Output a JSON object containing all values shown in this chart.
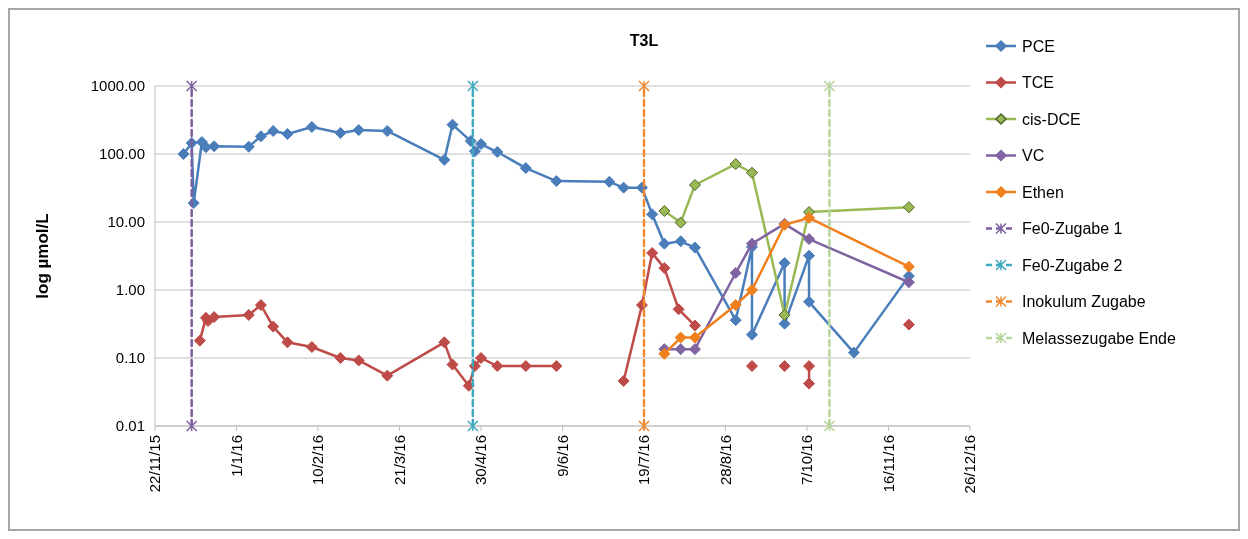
{
  "chart_data": {
    "type": "line",
    "title": "T3L",
    "ylabel": "log µmol/L",
    "log": "y",
    "grid": "y",
    "legend": "right",
    "marker": "diamond",
    "line_style": "solid",
    "xlim": [
      "2015-11-22",
      "2016-12-26"
    ],
    "xticks": [
      {
        "value": "2015-11-22",
        "label": "22/11/15"
      },
      {
        "value": "2016-01-01",
        "label": "1/1/16"
      },
      {
        "value": "2016-02-10",
        "label": "10/2/16"
      },
      {
        "value": "2016-03-21",
        "label": "21/3/16"
      },
      {
        "value": "2016-04-30",
        "label": "30/4/16"
      },
      {
        "value": "2016-06-09",
        "label": "9/6/16"
      },
      {
        "value": "2016-07-19",
        "label": "19/7/16"
      },
      {
        "value": "2016-08-28",
        "label": "28/8/16"
      },
      {
        "value": "2016-10-07",
        "label": "7/10/16"
      },
      {
        "value": "2016-11-16",
        "label": "16/11/16"
      },
      {
        "value": "2016-12-26",
        "label": "26/12/16"
      }
    ],
    "ylim": [
      0.01,
      1000
    ],
    "yticks": [
      {
        "value": 0.01,
        "label": "0.01"
      },
      {
        "value": 0.1,
        "label": "0.10"
      },
      {
        "value": 1,
        "label": "1.00"
      },
      {
        "value": 10,
        "label": "10.00"
      },
      {
        "value": 100,
        "label": "100.00"
      },
      {
        "value": 1000,
        "label": "1000.00"
      }
    ],
    "series": [
      {
        "name": "PCE",
        "color": "#4a7ebb",
        "x": [
          "2015-12-06",
          "2015-12-10",
          "2015-12-11",
          "2015-12-15",
          "2015-12-17",
          "2015-12-21",
          "2016-01-07",
          "2016-01-13",
          "2016-01-19",
          "2016-01-26",
          "2016-02-07",
          "2016-02-21",
          "2016-03-01",
          "2016-03-15",
          "2016-04-12",
          "2016-04-16",
          "2016-04-25",
          "2016-04-27",
          "2016-04-30",
          "2016-05-08",
          "2016-05-22",
          "2016-06-06",
          "2016-07-02",
          "2016-07-09",
          "2016-07-18",
          "2016-07-23",
          "2016-07-29",
          "2016-08-06",
          "2016-08-13",
          "2016-09-02",
          "2016-09-10",
          "2016-09-10",
          "2016-09-26",
          "2016-09-26",
          "2016-10-08",
          "2016-10-08",
          "2016-10-30",
          "2016-11-26"
        ],
        "values": [
          100,
          145,
          19,
          150,
          126,
          130,
          128,
          182,
          218,
          197,
          250,
          204,
          225,
          218,
          82,
          270,
          155,
          110,
          140,
          107,
          62,
          40,
          39,
          32,
          32,
          13,
          4.8,
          5.2,
          4.2,
          0.36,
          4.3,
          0.22,
          2.5,
          0.32,
          3.2,
          0.67,
          0.12,
          1.6
        ]
      },
      {
        "name": "TCE",
        "color": "#be4b48",
        "x": [
          "2015-12-14",
          "2015-12-17",
          "2015-12-18",
          "2015-12-21",
          "2016-01-07",
          "2016-01-13",
          "2016-01-19",
          "2016-01-26",
          "2016-02-07",
          "2016-02-21",
          "2016-03-01",
          "2016-03-15",
          "2016-04-12",
          "2016-04-16",
          "2016-04-24",
          "2016-04-27",
          "2016-04-30",
          "2016-05-08",
          "2016-05-22",
          "2016-06-06",
          "2016-06-19",
          "2016-07-09",
          "2016-07-18",
          "2016-07-23",
          "2016-07-29",
          "2016-08-05",
          "2016-08-13",
          "2016-08-25",
          "2016-09-10",
          "2016-09-18",
          "2016-09-26",
          "2016-10-02",
          "2016-10-08",
          "2016-10-08",
          "2016-10-20",
          "2016-11-26"
        ],
        "values": [
          0.18,
          0.39,
          0.35,
          0.4,
          0.43,
          0.6,
          0.29,
          0.17,
          0.145,
          0.1,
          0.092,
          0.055,
          0.17,
          0.08,
          0.039,
          0.076,
          0.1,
          0.076,
          0.076,
          0.076,
          null,
          0.046,
          0.6,
          3.5,
          2.1,
          0.52,
          0.3,
          null,
          0.076,
          null,
          0.076,
          null,
          0.076,
          0.042,
          null,
          0.31
        ]
      },
      {
        "name": "cis-DCE",
        "color": "#98b954",
        "x": [
          "2016-07-29",
          "2016-08-06",
          "2016-08-13",
          "2016-09-02",
          "2016-09-10",
          "2016-09-26",
          "2016-10-08",
          "2016-11-26"
        ],
        "values": [
          14.5,
          9.8,
          35,
          71,
          53,
          0.43,
          14,
          16.5
        ]
      },
      {
        "name": "VC",
        "color": "#8064a2",
        "x": [
          "2016-07-29",
          "2016-08-06",
          "2016-08-13",
          "2016-09-02",
          "2016-09-10",
          "2016-09-26",
          "2016-10-08",
          "2016-11-26"
        ],
        "values": [
          0.135,
          0.135,
          0.135,
          1.78,
          4.8,
          9.4,
          5.6,
          1.3
        ]
      },
      {
        "name": "Ethen",
        "color": "#f07f1e",
        "x": [
          "2016-07-29",
          "2016-08-06",
          "2016-08-13",
          "2016-09-02",
          "2016-09-10",
          "2016-09-26",
          "2016-10-08",
          "2016-11-26"
        ],
        "values": [
          0.115,
          0.2,
          0.2,
          0.6,
          1,
          9.1,
          11.5,
          2.2
        ]
      },
      {
        "name": "Fe0-Zugabe 1",
        "color": "#7d5fa0",
        "marker": "cross",
        "line_style": "dashed",
        "x": [
          "2015-12-10",
          "2015-12-10"
        ],
        "values": [
          0.01,
          1000
        ]
      },
      {
        "name": "Fe0-Zugabe 2",
        "color": "#3fa9c0",
        "marker": "cross",
        "line_style": "dashed",
        "x": [
          "2016-04-26",
          "2016-04-26"
        ],
        "values": [
          0.01,
          1000
        ]
      },
      {
        "name": "Inokulum Zugabe",
        "color": "#f08a30",
        "marker": "cross",
        "line_style": "dashed",
        "x": [
          "2016-07-19",
          "2016-07-19"
        ],
        "values": [
          0.01,
          1000
        ]
      },
      {
        "name": "Melassezugabe Ende",
        "color": "#b5d69a",
        "marker": "cross",
        "line_style": "dashed",
        "x": [
          "2016-10-18",
          "2016-10-18"
        ],
        "values": [
          0.01,
          1000
        ]
      }
    ]
  }
}
